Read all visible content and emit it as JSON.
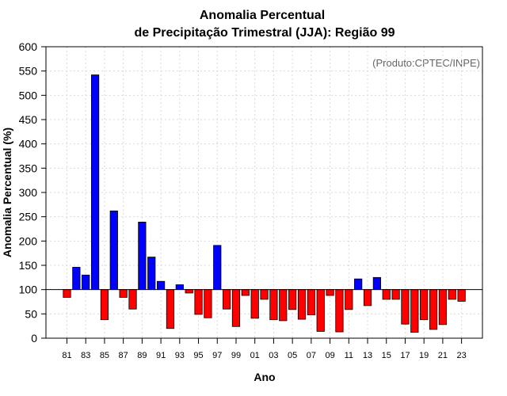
{
  "chart_data": {
    "type": "bar",
    "title_line1": "Anomalia Percentual",
    "title_line2": "de Precipitação Trimestral (JJA): Região 99",
    "xlabel": "Ano",
    "ylabel": "Anomalia Percentual (%)",
    "credit": "(Produto:CPTEC/INPE)",
    "ylim": [
      0,
      600
    ],
    "yticks": [
      0,
      50,
      100,
      150,
      200,
      250,
      300,
      350,
      400,
      450,
      500,
      550,
      600
    ],
    "baseline": 100,
    "grid": true,
    "colors": {
      "above": "#0000ff",
      "below": "#ff0000"
    },
    "categories": [
      "1981",
      "1982",
      "1983",
      "1984",
      "1985",
      "1986",
      "1987",
      "1988",
      "1989",
      "1990",
      "1991",
      "1992",
      "1993",
      "1994",
      "1995",
      "1996",
      "1997",
      "1998",
      "1999",
      "2000",
      "2001",
      "2002",
      "2003",
      "2004",
      "2005",
      "2006",
      "2007",
      "2008",
      "2009",
      "2010",
      "2011",
      "2012",
      "2013",
      "2014",
      "2015",
      "2016",
      "2017",
      "2018",
      "2019",
      "2020",
      "2021",
      "2022",
      "2023"
    ],
    "values": [
      84,
      146,
      130,
      542,
      38,
      262,
      84,
      60,
      239,
      167,
      117,
      20,
      110,
      93,
      49,
      42,
      191,
      60,
      24,
      88,
      41,
      80,
      38,
      36,
      59,
      39,
      48,
      14,
      88,
      13,
      59,
      122,
      67,
      125,
      80,
      80,
      29,
      12,
      38,
      18,
      28,
      80,
      76
    ],
    "xtick_labels": [
      "81",
      "83",
      "85",
      "87",
      "89",
      "91",
      "93",
      "95",
      "97",
      "99",
      "01",
      "03",
      "05",
      "07",
      "09",
      "11",
      "13",
      "15",
      "17",
      "19",
      "21",
      "23"
    ]
  }
}
